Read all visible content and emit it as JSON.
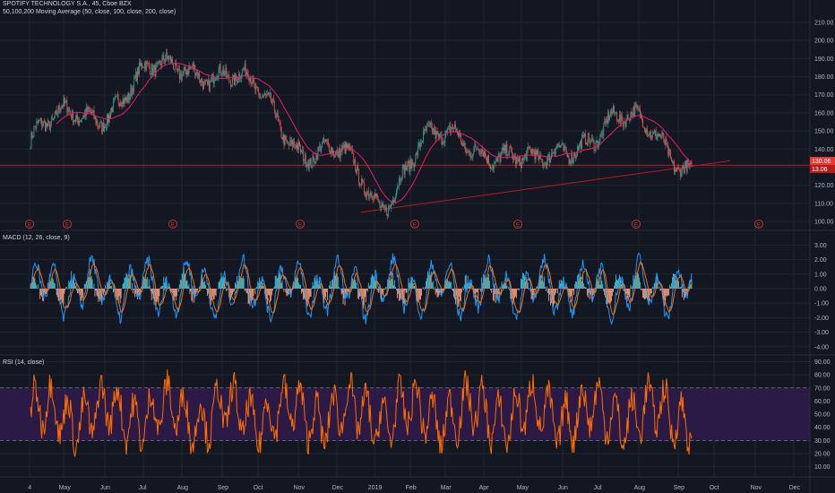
{
  "header": {
    "symbol_line": "SPOTIFY TECHNOLOGY S.A., 45, Cboe BZX",
    "ma_line": "50,100,200 Moving Average (50, close, 100, close, 200, close)"
  },
  "price_pane": {
    "y_ticks": [
      "210.00",
      "200.00",
      "190.00",
      "180.00",
      "170.00",
      "160.00",
      "150.00",
      "140.00",
      "130.00",
      "120.00",
      "110.00",
      "100.00"
    ],
    "last_price_badge": "130.06",
    "secondary_badge": "13.06",
    "earnings_marker": "E",
    "earnings_count": 8
  },
  "macd_pane": {
    "label": "MACD (12, 26, close, 9)",
    "y_ticks": [
      "3.00",
      "2.00",
      "1.00",
      "0.00",
      "-1.00",
      "-2.00",
      "-3.00",
      "-4.00"
    ]
  },
  "rsi_pane": {
    "label": "RSI (14, close)",
    "y_ticks": [
      "90.00",
      "80.00",
      "70.00",
      "60.00",
      "50.00",
      "40.00",
      "30.00",
      "20.00",
      "10.00"
    ]
  },
  "time_axis": {
    "labels": [
      "4",
      "May",
      "Jun",
      "Jul",
      "Aug",
      "Sep",
      "Oct",
      "Nov",
      "Dec",
      "2019",
      "Feb",
      "Mar",
      "Apr",
      "May",
      "Jun",
      "Jul",
      "Aug",
      "Sep",
      "Oct",
      "Nov",
      "Dec"
    ]
  },
  "colors": {
    "background": "#131722",
    "grid": "#1f2431",
    "candle_up": "#26a69a",
    "candle_down": "#ef5350",
    "ma_line": "#e91e63",
    "trendline": "#b71c1c",
    "macd_line": "#2196f3",
    "signal_line": "#ff6d00",
    "rsi_line": "#ff6d00",
    "rsi_band": "#2a1a45",
    "badge": "#e53935"
  },
  "chart_data": [
    {
      "type": "candlestick",
      "title": "SPOTIFY TECHNOLOGY S.A., 45, Cboe BZX",
      "ylim": [
        100,
        210
      ],
      "x": [
        "Apr",
        "May",
        "Jun",
        "Jul",
        "Aug",
        "Sep",
        "Oct",
        "Nov",
        "Dec",
        "2019",
        "Feb",
        "Mar",
        "Apr",
        "May",
        "Jun",
        "Jul",
        "Aug",
        "Sep"
      ],
      "series": [
        {
          "name": "close",
          "values": [
            145,
            158,
            163,
            180,
            188,
            180,
            168,
            140,
            135,
            110,
            142,
            145,
            140,
            128,
            145,
            155,
            150,
            130
          ]
        }
      ],
      "last_price": 130.06
    },
    {
      "type": "line",
      "title": "MACD (12, 26, close, 9)",
      "ylim": [
        -4.2,
        3.5
      ]
    },
    {
      "type": "line",
      "title": "RSI (14, close)",
      "ylim": [
        5,
        92
      ],
      "band": [
        30,
        70
      ]
    }
  ]
}
